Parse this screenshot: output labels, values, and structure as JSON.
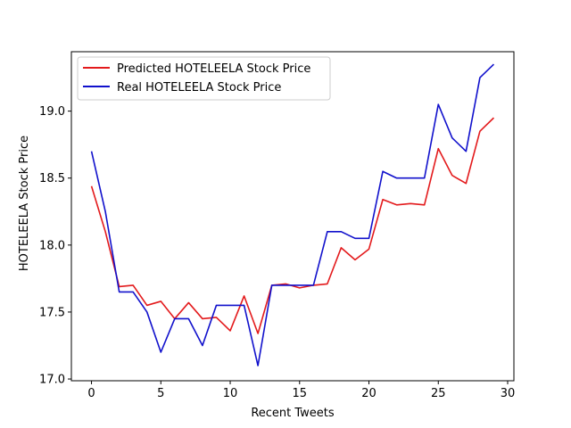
{
  "chart_data": {
    "type": "line",
    "title": "",
    "xlabel": "Recent Tweets",
    "ylabel": "HOTELEELA Stock Price",
    "xlim": [
      -1.45,
      30.45
    ],
    "ylim": [
      16.987,
      19.4435
    ],
    "xticks": [
      0,
      5,
      10,
      15,
      20,
      25,
      30
    ],
    "yticks": [
      17.0,
      17.5,
      18.0,
      18.5,
      19.0
    ],
    "xtick_labels": [
      "0",
      "5",
      "10",
      "15",
      "20",
      "25",
      "30"
    ],
    "ytick_labels": [
      "17.0",
      "17.5",
      "18.0",
      "18.5",
      "19.0"
    ],
    "grid": false,
    "legend_position": "top-left",
    "x": [
      0,
      1,
      2,
      3,
      4,
      5,
      6,
      7,
      8,
      9,
      10,
      11,
      12,
      13,
      14,
      15,
      16,
      17,
      18,
      19,
      20,
      21,
      22,
      23,
      24,
      25,
      26,
      27,
      28,
      29
    ],
    "series": [
      {
        "name": "Predicted HOTELEELA Stock Price",
        "color": "#e31a1c",
        "values": [
          18.44,
          18.1,
          17.69,
          17.7,
          17.55,
          17.58,
          17.45,
          17.57,
          17.45,
          17.46,
          17.36,
          17.62,
          17.34,
          17.7,
          17.71,
          17.68,
          17.7,
          17.71,
          17.98,
          17.89,
          17.97,
          18.34,
          18.3,
          18.31,
          18.3,
          18.72,
          18.52,
          18.46,
          18.85,
          18.95
        ]
      },
      {
        "name": "Real HOTELEELA Stock Price",
        "color": "#1111cc",
        "values": [
          18.7,
          18.25,
          17.65,
          17.65,
          17.5,
          17.2,
          17.45,
          17.45,
          17.25,
          17.55,
          17.55,
          17.55,
          17.1,
          17.7,
          17.7,
          17.7,
          17.7,
          18.1,
          18.1,
          18.05,
          18.05,
          18.55,
          18.5,
          18.5,
          18.5,
          19.05,
          18.8,
          18.7,
          19.25,
          19.35
        ]
      }
    ]
  }
}
